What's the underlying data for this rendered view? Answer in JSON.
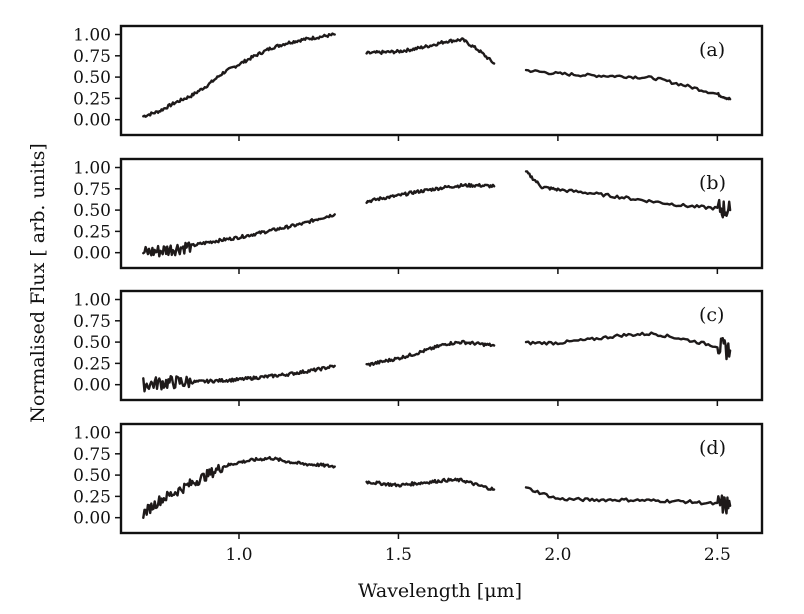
{
  "chart_data": {
    "type": "line",
    "xlabel": "Wavelength [μm]",
    "ylabel": "Normalised Flux [ arb. units]",
    "xlim": [
      0.63,
      2.64
    ],
    "ylim": [
      -0.18,
      1.1
    ],
    "x_ticks": [
      "1.0",
      "1.5",
      "2.0",
      "2.5"
    ],
    "y_ticks": [
      "1.00",
      "0.75",
      "0.50",
      "0.25",
      "0.00"
    ],
    "x_tick_values": [
      1.0,
      1.5,
      2.0,
      2.5
    ],
    "y_tick_values": [
      1.0,
      0.75,
      0.5,
      0.25,
      0.0
    ],
    "line_color": "#1e1a1a",
    "panels": [
      {
        "label": "(a)",
        "segments": [
          {
            "x": [
              0.7,
              0.75,
              0.8,
              0.85,
              0.9,
              0.95,
              1.0,
              1.05,
              1.1,
              1.15,
              1.2,
              1.25,
              1.3
            ],
            "y": [
              0.04,
              0.1,
              0.2,
              0.28,
              0.4,
              0.55,
              0.65,
              0.75,
              0.84,
              0.9,
              0.94,
              0.97,
              1.0
            ]
          },
          {
            "x": [
              1.4,
              1.45,
              1.5,
              1.55,
              1.6,
              1.65,
              1.7,
              1.75,
              1.8
            ],
            "y": [
              0.78,
              0.79,
              0.8,
              0.83,
              0.87,
              0.92,
              0.94,
              0.82,
              0.66
            ]
          },
          {
            "x": [
              1.9,
              2.0,
              2.1,
              2.2,
              2.3,
              2.4,
              2.5,
              2.54
            ],
            "y": [
              0.58,
              0.54,
              0.52,
              0.51,
              0.49,
              0.4,
              0.3,
              0.24
            ]
          }
        ]
      },
      {
        "label": "(b)",
        "segments": [
          {
            "x": [
              0.7,
              0.75,
              0.8,
              0.85,
              0.9,
              0.95,
              1.0,
              1.05,
              1.1,
              1.15,
              1.2,
              1.25,
              1.3
            ],
            "y": [
              0.0,
              0.02,
              0.05,
              0.08,
              0.12,
              0.15,
              0.18,
              0.22,
              0.26,
              0.3,
              0.34,
              0.4,
              0.45
            ]
          },
          {
            "x": [
              1.4,
              1.45,
              1.5,
              1.55,
              1.6,
              1.65,
              1.7,
              1.75,
              1.8
            ],
            "y": [
              0.6,
              0.64,
              0.67,
              0.71,
              0.74,
              0.77,
              0.79,
              0.79,
              0.78
            ]
          },
          {
            "x": [
              1.9,
              1.95,
              2.0,
              2.1,
              2.2,
              2.3,
              2.4,
              2.5,
              2.54
            ],
            "y": [
              0.95,
              0.77,
              0.74,
              0.7,
              0.65,
              0.6,
              0.55,
              0.52,
              0.5
            ]
          }
        ]
      },
      {
        "label": "(c)",
        "segments": [
          {
            "x": [
              0.7,
              0.75,
              0.8,
              0.85,
              0.9,
              0.95,
              1.0,
              1.05,
              1.1,
              1.15,
              1.2,
              1.25,
              1.3
            ],
            "y": [
              0.0,
              0.02,
              0.03,
              0.03,
              0.04,
              0.05,
              0.06,
              0.08,
              0.1,
              0.12,
              0.15,
              0.18,
              0.22
            ]
          },
          {
            "x": [
              1.4,
              1.45,
              1.5,
              1.55,
              1.6,
              1.65,
              1.7,
              1.75,
              1.8
            ],
            "y": [
              0.23,
              0.27,
              0.31,
              0.36,
              0.42,
              0.48,
              0.5,
              0.48,
              0.46
            ]
          },
          {
            "x": [
              1.9,
              2.0,
              2.1,
              2.2,
              2.3,
              2.4,
              2.5,
              2.54
            ],
            "y": [
              0.49,
              0.49,
              0.53,
              0.58,
              0.6,
              0.53,
              0.45,
              0.4
            ]
          }
        ]
      },
      {
        "label": "(d)",
        "segments": [
          {
            "x": [
              0.7,
              0.75,
              0.8,
              0.85,
              0.9,
              0.95,
              1.0,
              1.05,
              1.1,
              1.15,
              1.2,
              1.25,
              1.3
            ],
            "y": [
              0.05,
              0.2,
              0.3,
              0.4,
              0.5,
              0.6,
              0.65,
              0.68,
              0.7,
              0.66,
              0.63,
              0.62,
              0.6
            ]
          },
          {
            "x": [
              1.4,
              1.45,
              1.5,
              1.55,
              1.6,
              1.65,
              1.7,
              1.75,
              1.8
            ],
            "y": [
              0.42,
              0.4,
              0.38,
              0.4,
              0.42,
              0.44,
              0.44,
              0.38,
              0.33
            ]
          },
          {
            "x": [
              1.9,
              2.0,
              2.1,
              2.2,
              2.3,
              2.4,
              2.5,
              2.54
            ],
            "y": [
              0.35,
              0.22,
              0.21,
              0.21,
              0.2,
              0.19,
              0.16,
              0.14
            ]
          }
        ]
      }
    ]
  }
}
